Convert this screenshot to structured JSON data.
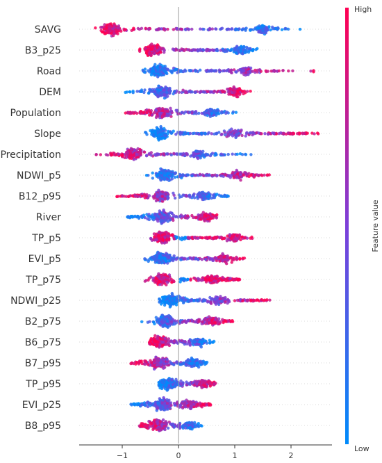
{
  "chart_data": {
    "type": "scatter",
    "subtype": "shap-beeswarm",
    "title": "",
    "xlabel": "",
    "xlim": [
      -1.75,
      2.7
    ],
    "x_ticks": [
      -1,
      0,
      1,
      2
    ],
    "x_tick_labels": [
      "−1",
      "0",
      "1",
      "2"
    ],
    "features": [
      {
        "name": "SAVG",
        "min": -1.6,
        "max": 2.2,
        "core": [
          -1.4,
          1.9
        ],
        "hub": -1.2,
        "hub2": 1.5,
        "lowSide": "right"
      },
      {
        "name": "B3_p25",
        "min": -0.7,
        "max": 1.45,
        "core": [
          -0.6,
          1.4
        ],
        "hub": -0.45,
        "hub2": 1.1,
        "lowSide": "right"
      },
      {
        "name": "Road",
        "min": -0.7,
        "max": 2.45,
        "core": [
          -0.7,
          1.8
        ],
        "hub": -0.35,
        "hub2": 1.2,
        "lowSide": "left"
      },
      {
        "name": "DEM",
        "min": -0.95,
        "max": 1.35,
        "core": [
          -0.9,
          1.2
        ],
        "hub": -0.3,
        "hub2": 1.0,
        "lowSide": "left"
      },
      {
        "name": "Population",
        "min": -0.95,
        "max": 1.1,
        "core": [
          -0.9,
          0.9
        ],
        "hub": -0.3,
        "hub2": 0.6,
        "lowSide": "right"
      },
      {
        "name": "Slope",
        "min": -0.6,
        "max": 2.55,
        "core": [
          -0.6,
          2.3
        ],
        "hub": -0.35,
        "hub2": 1.0,
        "lowSide": "left"
      },
      {
        "name": "Precipitation",
        "min": -1.55,
        "max": 1.4,
        "core": [
          -1.3,
          1.2
        ],
        "hub": -0.8,
        "hub2": 0.35,
        "lowSide": "right"
      },
      {
        "name": "NDWI_p5",
        "min": -0.6,
        "max": 1.65,
        "core": [
          -0.6,
          1.5
        ],
        "hub": -0.25,
        "hub2": 1.05,
        "lowSide": "left"
      },
      {
        "name": "B12_p95",
        "min": -1.1,
        "max": 0.95,
        "core": [
          -1.0,
          0.9
        ],
        "hub": -0.3,
        "hub2": 0.45,
        "lowSide": "right"
      },
      {
        "name": "River",
        "min": -0.95,
        "max": 0.75,
        "core": [
          -0.9,
          0.7
        ],
        "hub": -0.3,
        "hub2": 0.5,
        "lowSide": "left"
      },
      {
        "name": "TP_p5",
        "min": -0.55,
        "max": 1.35,
        "core": [
          -0.5,
          1.3
        ],
        "hub": -0.3,
        "hub2": 1.0,
        "lowSide": "center"
      },
      {
        "name": "EVI_p5",
        "min": -0.65,
        "max": 1.2,
        "core": [
          -0.65,
          1.1
        ],
        "hub": -0.3,
        "hub2": 0.8,
        "lowSide": "left"
      },
      {
        "name": "TP_p75",
        "min": -0.6,
        "max": 1.15,
        "core": [
          -0.45,
          1.1
        ],
        "hub": -0.3,
        "hub2": 0.6,
        "lowSide": "center"
      },
      {
        "name": "NDWI_p25",
        "min": -0.35,
        "max": 1.7,
        "core": [
          -0.35,
          1.5
        ],
        "hub": -0.15,
        "hub2": 0.7,
        "lowSide": "left"
      },
      {
        "name": "B2_p75",
        "min": -0.75,
        "max": 1.0,
        "core": [
          -0.45,
          0.95
        ],
        "hub": -0.25,
        "hub2": 0.6,
        "lowSide": "left"
      },
      {
        "name": "B6_p75",
        "min": -0.55,
        "max": 0.65,
        "core": [
          -0.55,
          0.6
        ],
        "hub": -0.35,
        "hub2": 0.35,
        "lowSide": "right"
      },
      {
        "name": "B7_p95",
        "min": -0.85,
        "max": 0.55,
        "core": [
          -0.85,
          0.5
        ],
        "hub": -0.35,
        "hub2": 0.25,
        "lowSide": "right"
      },
      {
        "name": "TP_p95",
        "min": -0.35,
        "max": 0.7,
        "core": [
          -0.35,
          0.65
        ],
        "hub": -0.2,
        "hub2": 0.45,
        "lowSide": "left"
      },
      {
        "name": "EVI_p25",
        "min": -0.85,
        "max": 0.6,
        "core": [
          -0.85,
          0.55
        ],
        "hub": -0.3,
        "hub2": 0.2,
        "lowSide": "left"
      },
      {
        "name": "B8_p95",
        "min": -0.7,
        "max": 0.45,
        "core": [
          -0.7,
          0.4
        ],
        "hub": -0.35,
        "hub2": 0.2,
        "lowSide": "right"
      }
    ],
    "colorbar": {
      "label": "Feature value",
      "high_label": "High",
      "low_label": "Low",
      "high_color": "#ff0052",
      "low_color": "#008bfb"
    },
    "grid": false,
    "legend": "colorbar-right"
  }
}
